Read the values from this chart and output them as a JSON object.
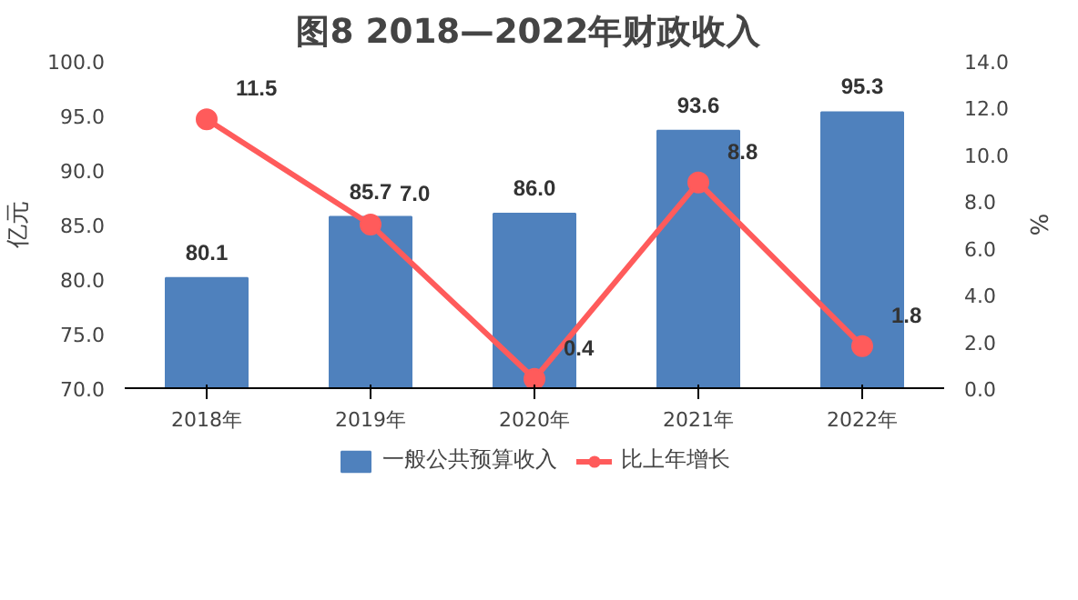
{
  "chart_data": {
    "type": "bar",
    "title": "图8  2018—2022年财政收入",
    "categories": [
      "2018年",
      "2019年",
      "2020年",
      "2021年",
      "2022年"
    ],
    "series": [
      {
        "name": "一般公共预算收入",
        "color": "#4f81bd",
        "values": [
          80.1,
          85.7,
          86.0,
          93.6,
          95.3
        ],
        "value_labels": [
          "80.1",
          "85.7",
          "86.0",
          "93.6",
          "95.3"
        ]
      },
      {
        "name": "比上年增长",
        "type": "line",
        "axis": "y2",
        "color": "#ff5b5b",
        "marker": "circle",
        "values": [
          11.5,
          7.0,
          0.4,
          8.8,
          1.8
        ],
        "value_labels": [
          "11.5",
          "7.0",
          "0.4",
          "8.8",
          "1.8"
        ]
      }
    ],
    "ylabel": "亿元",
    "y2label": "%",
    "ylim": [
      70,
      100
    ],
    "yticks": [
      {
        "value": 70,
        "label": "70.0"
      },
      {
        "value": 75,
        "label": "75.0"
      },
      {
        "value": 80,
        "label": "80.0"
      },
      {
        "value": 85,
        "label": "85.0"
      },
      {
        "value": 90,
        "label": "90.0"
      },
      {
        "value": 95,
        "label": "95.0"
      },
      {
        "value": 100,
        "label": "100.0"
      }
    ],
    "y2lim": [
      0,
      14
    ],
    "y2ticks": [
      {
        "value": 0,
        "label": "0.0"
      },
      {
        "value": 2,
        "label": "2.0"
      },
      {
        "value": 4,
        "label": "4.0"
      },
      {
        "value": 6,
        "label": "6.0"
      },
      {
        "value": 8,
        "label": "8.0"
      },
      {
        "value": 10,
        "label": "10.0"
      },
      {
        "value": 12,
        "label": "12.0"
      },
      {
        "value": 14,
        "label": "14.0"
      }
    ],
    "grid": false,
    "legend": "bottom"
  }
}
